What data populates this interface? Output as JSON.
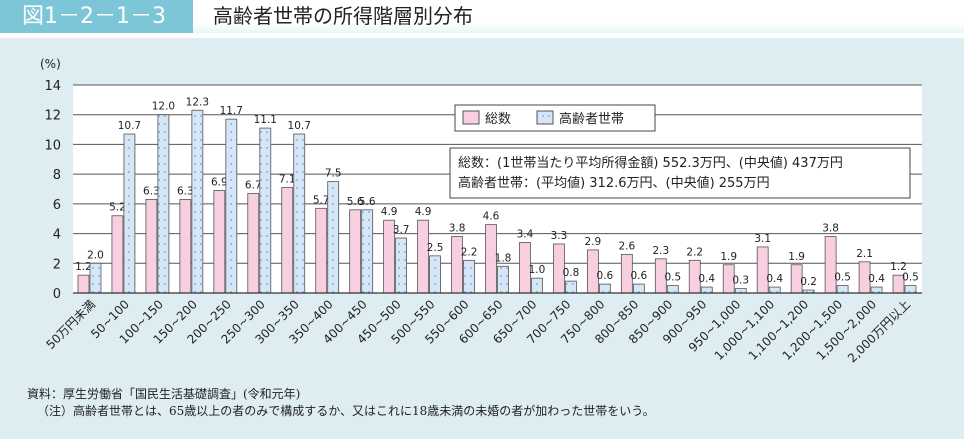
{
  "header": {
    "figure_number": "図1－2－1－3",
    "title": "高齢者世帯の所得階層別分布"
  },
  "chart_data": {
    "type": "bar",
    "ylabel": "(%)",
    "ylim": [
      0,
      14
    ],
    "yticks": [
      0,
      2,
      4,
      6,
      8,
      10,
      12,
      14
    ],
    "grid": true,
    "legend_placement": "top-right",
    "categories": [
      "50万円未満",
      "50~100",
      "100~150",
      "150~200",
      "200~250",
      "250~300",
      "300~350",
      "350~400",
      "400~450",
      "450~500",
      "500~550",
      "550~600",
      "600~650",
      "650~700",
      "700~750",
      "750~800",
      "800~850",
      "850~900",
      "900~950",
      "950~1,000",
      "1,000~1,100",
      "1,100~1,200",
      "1,200~1,500",
      "1,500~2,000",
      "2,000万円以上"
    ],
    "series": [
      {
        "name": "総数",
        "color": "#f7cfe0",
        "values": [
          1.2,
          5.2,
          6.3,
          6.3,
          6.9,
          6.7,
          7.1,
          5.7,
          5.6,
          4.9,
          4.9,
          3.8,
          4.6,
          3.4,
          3.3,
          2.9,
          2.6,
          2.3,
          2.2,
          1.9,
          3.1,
          1.9,
          3.8,
          2.1,
          1.2
        ]
      },
      {
        "name": "高齢者世帯",
        "color": "#d5e7f6",
        "values": [
          2.0,
          10.7,
          12.0,
          12.3,
          11.7,
          11.1,
          10.7,
          7.5,
          5.6,
          3.7,
          2.5,
          2.2,
          1.8,
          1.0,
          0.8,
          0.6,
          0.6,
          0.5,
          0.4,
          0.3,
          0.4,
          0.2,
          0.5,
          0.4,
          0.5
        ]
      }
    ],
    "annotations": [
      "総数：(1世帯当たり平均所得金額) 552.3万円、(中央値) 437万円",
      "高齢者世帯：(平均値) 312.6万円、(中央値) 255万円"
    ]
  },
  "notes": {
    "source": "資料：厚生労働省「国民生活基礎調査」(令和元年)",
    "note": "（注）高齢者世帯とは、65歳以上の者のみで構成するか、又はこれに18歳未満の未婚の者が加わった世帯をいう。"
  }
}
